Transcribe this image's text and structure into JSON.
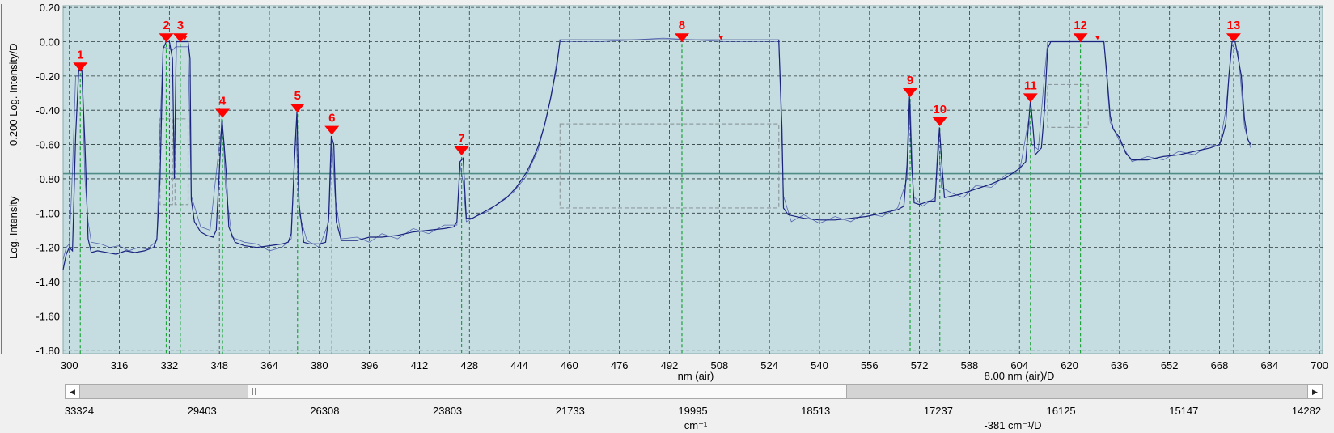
{
  "chart_data": {
    "type": "line",
    "title": "",
    "xlabel": "nm (air)",
    "x_resolution_label": "8.00 nm (air)/D",
    "ylabel": "Log. Intensity",
    "y_resolution_label": "0.200 Log. Intensity/D",
    "xlim": [
      298,
      701
    ],
    "ylim": [
      -1.82,
      0.21
    ],
    "x_ticks": [
      300,
      316,
      332,
      348,
      364,
      380,
      396,
      412,
      428,
      444,
      460,
      476,
      492,
      508,
      524,
      540,
      556,
      572,
      588,
      604,
      620,
      636,
      652,
      668,
      684,
      700
    ],
    "y_ticks": [
      "0.20",
      "0.00",
      "-0.20",
      "-0.40",
      "-0.60",
      "-0.80",
      "-1.00",
      "-1.20",
      "-1.40",
      "-1.60",
      "-1.80"
    ],
    "wavenumber_axis": {
      "label": "cm⁻¹",
      "resolution_label": "-381 cm⁻¹/D",
      "ticks": [
        "33324",
        "29403",
        "26308",
        "23803",
        "21733",
        "19995",
        "18513",
        "17237",
        "16125",
        "15147",
        "14282"
      ]
    },
    "threshold_line": -0.77,
    "grid": true,
    "series": [
      {
        "color": "#1a237e",
        "points": [
          [
            298,
            -1.33
          ],
          [
            299,
            -1.24
          ],
          [
            300,
            -1.2
          ],
          [
            301,
            -1.22
          ],
          [
            302,
            -0.55
          ],
          [
            303,
            -0.17
          ],
          [
            304,
            -0.17
          ],
          [
            305,
            -0.6
          ],
          [
            306,
            -1.15
          ],
          [
            307,
            -1.23
          ],
          [
            309,
            -1.22
          ],
          [
            312,
            -1.23
          ],
          [
            315,
            -1.24
          ],
          [
            318,
            -1.22
          ],
          [
            321,
            -1.23
          ],
          [
            324,
            -1.22
          ],
          [
            327,
            -1.2
          ],
          [
            328,
            -1.15
          ],
          [
            329,
            -0.8
          ],
          [
            330,
            -0.04
          ],
          [
            331,
            0.0
          ],
          [
            332,
            0.0
          ],
          [
            333,
            -0.1
          ],
          [
            333.6,
            -0.8
          ],
          [
            334.2,
            0.0
          ],
          [
            335,
            0.0
          ],
          [
            336,
            0.0
          ],
          [
            337,
            0.0
          ],
          [
            338,
            0.0
          ],
          [
            338.6,
            -0.1
          ],
          [
            339,
            -0.92
          ],
          [
            340,
            -1.05
          ],
          [
            342,
            -1.11
          ],
          [
            344,
            -1.13
          ],
          [
            346,
            -1.14
          ],
          [
            347,
            -1.1
          ],
          [
            348,
            -0.75
          ],
          [
            348.8,
            -0.45
          ],
          [
            349.5,
            -0.6
          ],
          [
            350.2,
            -0.77
          ],
          [
            351,
            -1.08
          ],
          [
            353,
            -1.17
          ],
          [
            356,
            -1.19
          ],
          [
            360,
            -1.2
          ],
          [
            364,
            -1.19
          ],
          [
            368,
            -1.18
          ],
          [
            370,
            -1.17
          ],
          [
            371,
            -1.12
          ],
          [
            372,
            -0.7
          ],
          [
            372.8,
            -0.41
          ],
          [
            373.5,
            -0.95
          ],
          [
            375,
            -1.17
          ],
          [
            377,
            -1.18
          ],
          [
            380,
            -1.18
          ],
          [
            382,
            -1.17
          ],
          [
            383,
            -1.02
          ],
          [
            383.8,
            -0.55
          ],
          [
            384.6,
            -0.6
          ],
          [
            385.4,
            -1.05
          ],
          [
            387,
            -1.16
          ],
          [
            392,
            -1.16
          ],
          [
            396,
            -1.14
          ],
          [
            400,
            -1.14
          ],
          [
            405,
            -1.13
          ],
          [
            410,
            -1.11
          ],
          [
            415,
            -1.1
          ],
          [
            420,
            -1.09
          ],
          [
            423,
            -1.08
          ],
          [
            424,
            -1.05
          ],
          [
            425,
            -0.7
          ],
          [
            426,
            -0.68
          ],
          [
            427,
            -1.03
          ],
          [
            429,
            -1.03
          ],
          [
            432,
            -1.0
          ],
          [
            436,
            -0.96
          ],
          [
            440,
            -0.91
          ],
          [
            443,
            -0.85
          ],
          [
            446,
            -0.77
          ],
          [
            448,
            -0.7
          ],
          [
            450,
            -0.61
          ],
          [
            452,
            -0.49
          ],
          [
            454,
            -0.33
          ],
          [
            456,
            -0.14
          ],
          [
            457,
            0.01
          ],
          [
            460,
            0.01
          ],
          [
            470,
            0.01
          ],
          [
            480,
            0.01
          ],
          [
            490,
            0.01
          ],
          [
            500,
            0.01
          ],
          [
            510,
            0.01
          ],
          [
            520,
            0.01
          ],
          [
            527,
            0.01
          ],
          [
            528,
            -0.5
          ],
          [
            528.5,
            -0.97
          ],
          [
            530,
            -1.01
          ],
          [
            535,
            -1.03
          ],
          [
            540,
            -1.04
          ],
          [
            545,
            -1.04
          ],
          [
            550,
            -1.03
          ],
          [
            555,
            -1.02
          ],
          [
            560,
            -1.0
          ],
          [
            565,
            -0.98
          ],
          [
            567,
            -0.96
          ],
          [
            568,
            -0.72
          ],
          [
            568.8,
            -0.32
          ],
          [
            569.5,
            -0.72
          ],
          [
            570.3,
            -0.94
          ],
          [
            572,
            -0.95
          ],
          [
            575,
            -0.93
          ],
          [
            577,
            -0.93
          ],
          [
            577.7,
            -0.7
          ],
          [
            578.4,
            -0.5
          ],
          [
            579.1,
            -0.7
          ],
          [
            580,
            -0.91
          ],
          [
            585,
            -0.89
          ],
          [
            590,
            -0.86
          ],
          [
            595,
            -0.83
          ],
          [
            600,
            -0.79
          ],
          [
            604,
            -0.74
          ],
          [
            606,
            -0.7
          ],
          [
            606.8,
            -0.5
          ],
          [
            607.5,
            -0.34
          ],
          [
            608.3,
            -0.5
          ],
          [
            609,
            -0.66
          ],
          [
            611,
            -0.62
          ],
          [
            612,
            -0.4
          ],
          [
            613,
            -0.04
          ],
          [
            614,
            0.0
          ],
          [
            620,
            0.0
          ],
          [
            625,
            0.0
          ],
          [
            631,
            0.0
          ],
          [
            632,
            -0.2
          ],
          [
            633,
            -0.43
          ],
          [
            634,
            -0.51
          ],
          [
            636,
            -0.56
          ],
          [
            638,
            -0.65
          ],
          [
            640,
            -0.69
          ],
          [
            645,
            -0.69
          ],
          [
            650,
            -0.67
          ],
          [
            655,
            -0.66
          ],
          [
            660,
            -0.64
          ],
          [
            665,
            -0.62
          ],
          [
            668,
            -0.6
          ],
          [
            669,
            -0.55
          ],
          [
            670,
            -0.48
          ],
          [
            671,
            -0.2
          ],
          [
            672,
            0.0
          ],
          [
            673,
            0.0
          ],
          [
            674,
            -0.1
          ],
          [
            675,
            -0.2
          ],
          [
            676,
            -0.45
          ],
          [
            677,
            -0.57
          ],
          [
            678,
            -0.6
          ]
        ]
      }
    ],
    "overlay_points": [
      [
        298,
        -1.27
      ],
      [
        299,
        -1.2
      ],
      [
        300,
        -1.18
      ],
      [
        301,
        -0.75
      ],
      [
        302,
        -0.2
      ],
      [
        304,
        -0.2
      ],
      [
        305,
        -0.8
      ],
      [
        306,
        -1.05
      ],
      [
        307,
        -1.17
      ],
      [
        310,
        -1.18
      ],
      [
        313,
        -1.2
      ],
      [
        316,
        -1.19
      ],
      [
        319,
        -1.22
      ],
      [
        322,
        -1.2
      ],
      [
        325,
        -1.21
      ],
      [
        328,
        -1.16
      ],
      [
        329,
        -0.5
      ],
      [
        330,
        -0.03
      ],
      [
        333,
        -0.05
      ],
      [
        334,
        -0.03
      ],
      [
        338,
        -0.03
      ],
      [
        339,
        -0.9
      ],
      [
        342,
        -1.08
      ],
      [
        345,
        -1.1
      ],
      [
        348,
        -0.6
      ],
      [
        349,
        -0.46
      ],
      [
        350,
        -0.85
      ],
      [
        352,
        -1.14
      ],
      [
        356,
        -1.17
      ],
      [
        360,
        -1.18
      ],
      [
        364,
        -1.22
      ],
      [
        368,
        -1.2
      ],
      [
        371,
        -1.15
      ],
      [
        372.5,
        -0.5
      ],
      [
        373.5,
        -1.0
      ],
      [
        376,
        -1.16
      ],
      [
        380,
        -1.2
      ],
      [
        383,
        -1.05
      ],
      [
        384,
        -0.57
      ],
      [
        385,
        -0.9
      ],
      [
        387,
        -1.15
      ],
      [
        392,
        -1.14
      ],
      [
        396,
        -1.17
      ],
      [
        400,
        -1.12
      ],
      [
        405,
        -1.15
      ],
      [
        410,
        -1.09
      ],
      [
        415,
        -1.12
      ],
      [
        420,
        -1.07
      ],
      [
        424,
        -1.07
      ],
      [
        425,
        -0.72
      ],
      [
        426,
        -0.82
      ],
      [
        427,
        -1.05
      ],
      [
        430,
        -1.02
      ],
      [
        434,
        -0.99
      ],
      [
        438,
        -0.93
      ],
      [
        442,
        -0.88
      ],
      [
        446,
        -0.79
      ],
      [
        450,
        -0.63
      ],
      [
        453,
        -0.42
      ],
      [
        455,
        -0.22
      ],
      [
        457,
        0.0
      ],
      [
        470,
        0.0
      ],
      [
        490,
        0.02
      ],
      [
        510,
        0.0
      ],
      [
        527,
        0.0
      ],
      [
        528.5,
        -0.9
      ],
      [
        531,
        -1.05
      ],
      [
        535,
        -1.01
      ],
      [
        540,
        -1.06
      ],
      [
        545,
        -1.02
      ],
      [
        550,
        -1.05
      ],
      [
        555,
        -1.0
      ],
      [
        560,
        -1.02
      ],
      [
        565,
        -0.97
      ],
      [
        568,
        -0.8
      ],
      [
        569,
        -0.34
      ],
      [
        570,
        -0.9
      ],
      [
        573,
        -0.96
      ],
      [
        577,
        -0.91
      ],
      [
        578,
        -0.55
      ],
      [
        579,
        -0.85
      ],
      [
        582,
        -0.88
      ],
      [
        586,
        -0.91
      ],
      [
        590,
        -0.84
      ],
      [
        595,
        -0.85
      ],
      [
        600,
        -0.77
      ],
      [
        604,
        -0.76
      ],
      [
        607,
        -0.45
      ],
      [
        608,
        -0.6
      ],
      [
        610,
        -0.63
      ],
      [
        612,
        -0.2
      ],
      [
        613,
        0.0
      ],
      [
        631,
        0.0
      ],
      [
        633,
        -0.47
      ],
      [
        636,
        -0.58
      ],
      [
        640,
        -0.7
      ],
      [
        645,
        -0.67
      ],
      [
        650,
        -0.69
      ],
      [
        655,
        -0.64
      ],
      [
        660,
        -0.66
      ],
      [
        665,
        -0.6
      ],
      [
        668,
        -0.61
      ],
      [
        670,
        -0.4
      ],
      [
        672,
        -0.02
      ],
      [
        674,
        -0.06
      ],
      [
        676,
        -0.5
      ],
      [
        678,
        -0.62
      ]
    ],
    "markers": [
      {
        "label": "1",
        "x": 303.5,
        "y": -0.15
      },
      {
        "label": "2",
        "x": 331,
        "y": 0.02
      },
      {
        "label": "3",
        "x": 335.5,
        "y": 0.02
      },
      {
        "label": "4",
        "x": 349,
        "y": -0.42
      },
      {
        "label": "5",
        "x": 373,
        "y": -0.39
      },
      {
        "label": "6",
        "x": 384,
        "y": -0.52
      },
      {
        "label": "7",
        "x": 425.5,
        "y": -0.64
      },
      {
        "label": "8",
        "x": 496,
        "y": 0.02
      },
      {
        "label": "9",
        "x": 569,
        "y": -0.3
      },
      {
        "label": "10",
        "x": 578.5,
        "y": -0.47
      },
      {
        "label": "11",
        "x": 607.5,
        "y": -0.33
      },
      {
        "label": "12",
        "x": 623.5,
        "y": 0.02
      },
      {
        "label": "13",
        "x": 672.5,
        "y": 0.02
      }
    ],
    "small_markers": [
      {
        "x": 508.5,
        "y": 0.02
      },
      {
        "x": 629,
        "y": 0.02
      },
      {
        "x": 337,
        "y": 0.02
      }
    ],
    "gray_boxes": [
      {
        "x0": 457,
        "x1": 527,
        "y0": -0.48,
        "y1": -0.97
      },
      {
        "x0": 613,
        "x1": 626,
        "y0": -0.25,
        "y1": -0.5
      },
      {
        "x0": 329,
        "x1": 333,
        "y0": -0.45,
        "y1": -0.95
      },
      {
        "x0": 333.8,
        "x1": 338,
        "y0": -0.45,
        "y1": -0.95
      }
    ]
  },
  "scrollbar": {
    "left_arrow": "◀",
    "right_arrow": "▶",
    "thumb_start": 0.137,
    "thumb_end": 0.625
  }
}
